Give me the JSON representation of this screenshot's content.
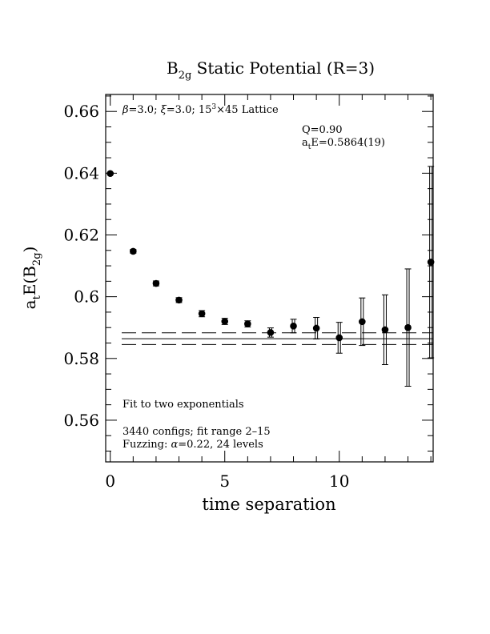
{
  "chart_data": {
    "type": "scatter",
    "title": {
      "prefix": "B",
      "subscript": "2g",
      "rest": " Static Potential (R=3)"
    },
    "xlabel": "time separation",
    "ylabel": {
      "a": "a",
      "a_sub": "t",
      "e": "E(B",
      "e_sub": "2g",
      "close": ")"
    },
    "xlim": [
      -0.2,
      14.1
    ],
    "ylim": [
      0.5465,
      0.6655
    ],
    "xticks": [
      0,
      5,
      10
    ],
    "xtick_labels": [
      "0",
      "5",
      "10"
    ],
    "yticks": [
      0.56,
      0.58,
      0.6,
      0.62,
      0.64,
      0.66
    ],
    "ytick_labels": [
      "0.56",
      "0.58",
      "0.6",
      "0.62",
      "0.64",
      "0.66"
    ],
    "x_minor_step": 1,
    "y_minor_step": 0.005,
    "grid": false,
    "series": [
      {
        "marker": "filled-circle",
        "color": "#000000",
        "x": [
          0,
          1,
          2,
          3,
          4,
          5,
          6,
          7,
          8,
          9,
          10,
          11,
          12,
          13,
          14
        ],
        "y": [
          0.6399,
          0.6147,
          0.6043,
          0.5989,
          0.5945,
          0.592,
          0.5912,
          0.5884,
          0.5905,
          0.5898,
          0.5867,
          0.5919,
          0.5893,
          0.59,
          0.6112
        ],
        "err": [
          0.0003,
          0.0006,
          0.0008,
          0.0008,
          0.001,
          0.001,
          0.001,
          0.0015,
          0.0022,
          0.0035,
          0.005,
          0.0077,
          0.0113,
          0.019,
          0.031
        ]
      }
    ],
    "fit": {
      "x_range": [
        0.5,
        14.1
      ],
      "center": 0.5864,
      "error": 0.0019,
      "center_style": "solid",
      "band_style": "dashed"
    },
    "annotations": {
      "lattice": {
        "beta": "β",
        "beta_rest": "=3.0; ",
        "xi": "ξ",
        "xi_rest": "=3.0; 15",
        "sup3": "3",
        "rest": "×45 Lattice"
      },
      "q": "Q=0.90",
      "fit_result": {
        "a": "a",
        "a_sub": "t",
        "rest": "E=0.5864(19)"
      },
      "fit_type": "Fit to two exponentials",
      "configs": "3440 configs; fit range 2–15",
      "fuzzing": {
        "prefix": "Fuzzing: ",
        "alpha": "α",
        "rest": "=0.22, 24 levels"
      }
    }
  }
}
